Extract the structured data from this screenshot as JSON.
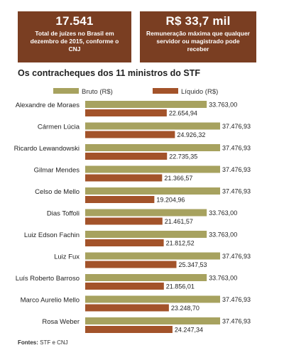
{
  "stats": [
    {
      "value": "17.541",
      "desc": "Total de juízes no Brasil em dezembro de 2015, conforme o CNJ"
    },
    {
      "value": "R$ 33,7 mil",
      "desc": "Remuneração máxima que qualquer servidor ou magistrado pode receber"
    }
  ],
  "footer": {
    "source_label": "Fontes:",
    "source_text": "STF e CNJ"
  },
  "colors": {
    "bruto": "#a7a25f",
    "liquido": "#a3532a",
    "header_bg": "#7a3e22"
  },
  "chart_data": {
    "type": "bar",
    "orientation": "horizontal",
    "title": "Os contracheques dos 11 ministros do STF",
    "categories": [
      "Alexandre de Moraes",
      "Cármen Lúcia",
      "Ricardo Lewandowski",
      "Gilmar Mendes",
      "Celso de Mello",
      "Dias Toffoli",
      "Luiz Edson Fachin",
      "Luiz Fux",
      "Luís Roberto Barroso",
      "Marco Aurelio Mello",
      "Rosa Weber"
    ],
    "series": [
      {
        "name": "Bruto (R$)",
        "color": "#a7a25f",
        "values": [
          33763.0,
          37476.93,
          37476.93,
          37476.93,
          37476.93,
          33763.0,
          33763.0,
          37476.93,
          33763.0,
          37476.93,
          37476.93
        ],
        "labels": [
          "33.763,00",
          "37.476,93",
          "37.476,93",
          "37.476,93",
          "37.476,93",
          "33.763,00",
          "33.763,00",
          "37.476,93",
          "33.763,00",
          "37.476,93",
          "37.476,93"
        ]
      },
      {
        "name": "Líquido (R$)",
        "color": "#a3532a",
        "values": [
          22654.94,
          24926.32,
          22735.35,
          21366.57,
          19204.96,
          21461.57,
          21812.52,
          25347.53,
          21856.01,
          23248.7,
          24247.34
        ],
        "labels": [
          "22.654,94",
          "24.926,32",
          "22.735,35",
          "21.366,57",
          "19.204,96",
          "21.461,57",
          "21.812,52",
          "25.347,53",
          "21.856,01",
          "23.248,70",
          "24.247,34"
        ]
      }
    ],
    "legend": "top",
    "grid": false
  }
}
